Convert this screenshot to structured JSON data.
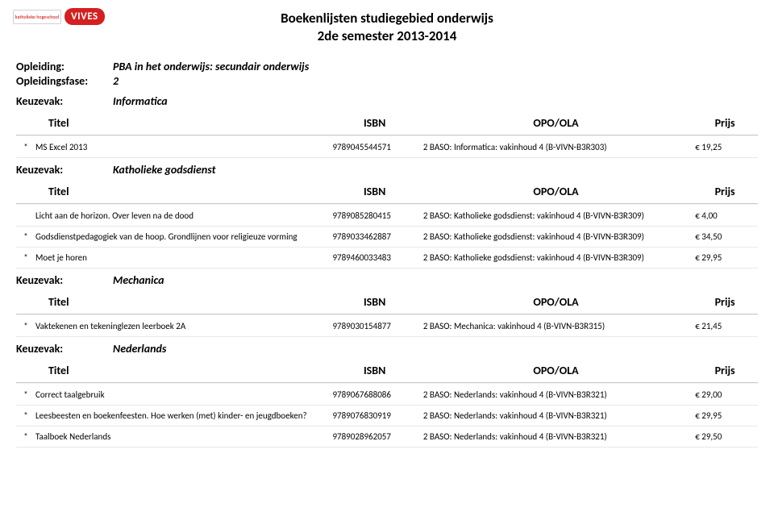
{
  "doc": {
    "title_l1": "Boekenlijsten studiegebied onderwijs",
    "title_l2": "2de semester 2013-2014"
  },
  "logo": {
    "khb_text": "katholieke hogeschool",
    "vives_text": "VIVES"
  },
  "meta": {
    "opleiding_label": "Opleiding:",
    "opleiding_value": "PBA in het onderwijs: secundair onderwijs",
    "fase_label": "Opleidingsfase:",
    "fase_value": "2"
  },
  "labels": {
    "keuzevak": "Keuzevak:",
    "titel": "Titel",
    "isbn": "ISBN",
    "opo": "OPO/OLA",
    "prijs": "Prijs",
    "star": "*"
  },
  "sections": [
    {
      "name": "Informatica",
      "rows": [
        {
          "star": true,
          "title": "MS Excel 2013",
          "isbn": "9789045544571",
          "opo": "2 BASO: Informatica: vakinhoud 4 (B-VIVN-B3R303)",
          "prijs": "€ 19,25"
        }
      ]
    },
    {
      "name": "Katholieke godsdienst",
      "rows": [
        {
          "star": false,
          "title": "Licht aan de horizon. Over leven na de dood",
          "isbn": "9789085280415",
          "opo": "2 BASO: Katholieke godsdienst: vakinhoud 4 (B-VIVN-B3R309)",
          "prijs": "€ 4,00"
        },
        {
          "star": true,
          "title": "Godsdienstpedagogiek van de hoop. Grondlijnen voor religieuze vorming",
          "isbn": "9789033462887",
          "opo": "2 BASO: Katholieke godsdienst: vakinhoud 4 (B-VIVN-B3R309)",
          "prijs": "€ 34,50"
        },
        {
          "star": true,
          "title": "Moet je horen",
          "isbn": "9789460033483",
          "opo": "2 BASO: Katholieke godsdienst: vakinhoud 4 (B-VIVN-B3R309)",
          "prijs": "€ 29,95"
        }
      ]
    },
    {
      "name": "Mechanica",
      "rows": [
        {
          "star": true,
          "title": "Vaktekenen en tekeninglezen leerboek 2A",
          "isbn": "9789030154877",
          "opo": "2 BASO: Mechanica: vakinhoud 4 (B-VIVN-B3R315)",
          "prijs": "€ 21,45"
        }
      ]
    },
    {
      "name": "Nederlands",
      "rows": [
        {
          "star": true,
          "title": "Correct taalgebruik",
          "isbn": "9789067688086",
          "opo": "2 BASO: Nederlands: vakinhoud 4 (B-VIVN-B3R321)",
          "prijs": "€ 29,00"
        },
        {
          "star": true,
          "title": "Leesbeesten en boekenfeesten. Hoe werken (met) kinder- en jeugdboeken?",
          "isbn": "9789076830919",
          "opo": "2 BASO: Nederlands: vakinhoud 4 (B-VIVN-B3R321)",
          "prijs": "€ 29,95"
        },
        {
          "star": true,
          "title": "Taalboek Nederlands",
          "isbn": "9789028962057",
          "opo": "2 BASO: Nederlands: vakinhoud 4 (B-VIVN-B3R321)",
          "prijs": "€ 29,50"
        }
      ]
    }
  ],
  "colors": {
    "text": "#000000",
    "accent_red": "#d42020",
    "row_border": "#e8e8e8",
    "header_border": "#c8c8c8"
  }
}
